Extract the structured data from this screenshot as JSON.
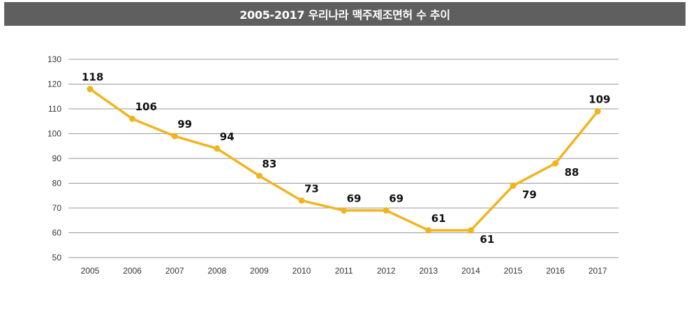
{
  "chart_data": {
    "type": "line",
    "title": "2005-2017 우리나라 맥주제조면허 수 추이",
    "xlabel": "",
    "ylabel": "",
    "categories": [
      "2005",
      "2006",
      "2007",
      "2008",
      "2009",
      "2010",
      "2011",
      "2012",
      "2013",
      "2014",
      "2015",
      "2016",
      "2017"
    ],
    "values": [
      118,
      106,
      99,
      94,
      83,
      73,
      69,
      69,
      61,
      61,
      79,
      88,
      109
    ],
    "ylim": [
      50,
      130
    ],
    "yticks": [
      50,
      60,
      70,
      80,
      90,
      100,
      110,
      120,
      130
    ],
    "grid": true,
    "legend": "none",
    "label_positions": [
      "above",
      "above",
      "above",
      "above",
      "above",
      "above",
      "above",
      "above",
      "above",
      "right-below",
      "right-below",
      "right-below",
      "above"
    ],
    "colors": {
      "line": "#F0B41E",
      "title_bg": "#5F5F5F",
      "grid": "#9A9A9A"
    }
  }
}
